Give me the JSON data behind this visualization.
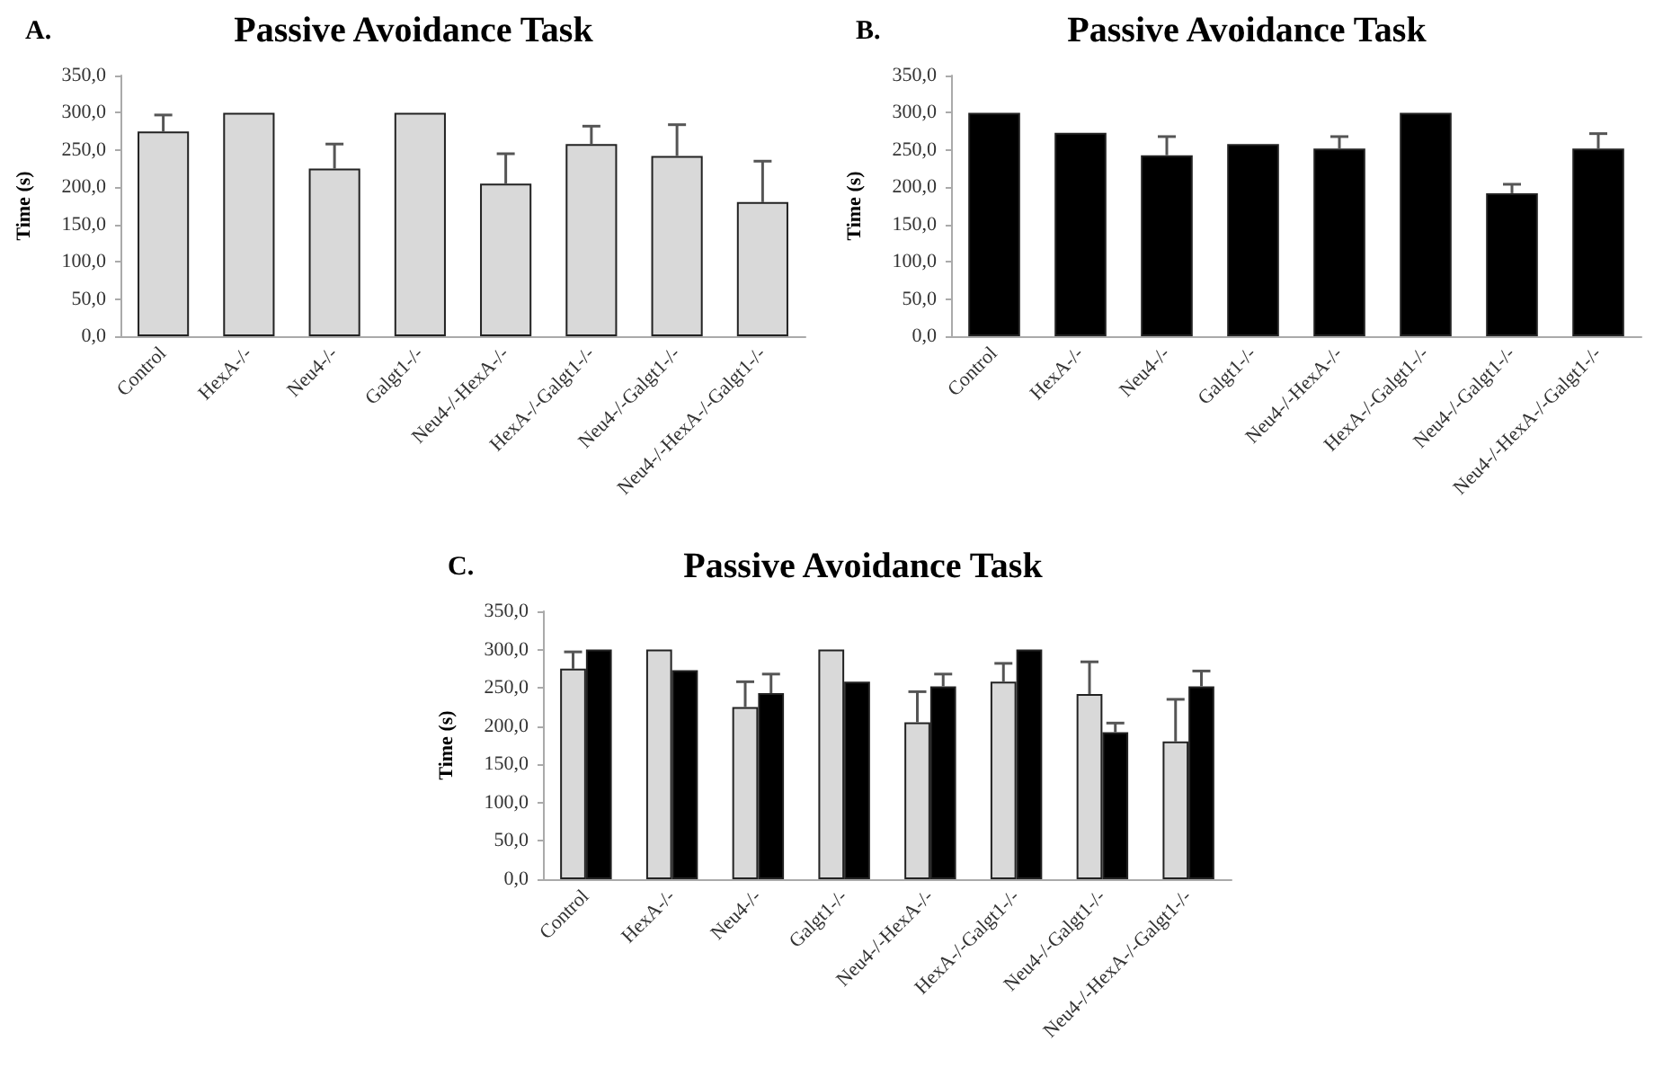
{
  "chart_data": [
    {
      "type": "bar",
      "title": "Passive Avoidance Task",
      "annotations": [
        "A."
      ],
      "ylabel": "Time (s)",
      "categories": [
        "Control",
        "HexA-/-",
        "Neu4-/-",
        "Galgt1-/-",
        "Neu4-/-HexA-/-",
        "HexA-/-Galgt1-/-",
        "Neu4-/-Galgt1-/-",
        "Neu4-/-HexA-/-Galgt1-/-"
      ],
      "values": [
        275,
        300,
        225,
        300,
        205,
        258,
        242,
        180
      ],
      "color": "#d9d9d9",
      "errors": [
        [
          275,
          297
        ],
        null,
        [
          225,
          258
        ],
        null,
        [
          205,
          245
        ],
        [
          258,
          282
        ],
        [
          242,
          284
        ],
        [
          180,
          235
        ]
      ],
      "ylim": [
        0,
        350
      ],
      "yticks": [
        {
          "value": 0,
          "label": "0,0"
        },
        {
          "value": 50,
          "label": "50,0"
        },
        {
          "value": 100,
          "label": "100,0"
        },
        {
          "value": 150,
          "label": "150,0"
        },
        {
          "value": 200,
          "label": "200,0"
        },
        {
          "value": 250,
          "label": "250,0"
        },
        {
          "value": 300,
          "label": "300,0"
        },
        {
          "value": 350,
          "label": "350,0"
        }
      ]
    },
    {
      "type": "bar",
      "title": "Passive Avoidance Task",
      "annotations": [
        "B."
      ],
      "ylabel": "Time (s)",
      "categories": [
        "Control",
        "HexA-/-",
        "Neu4-/-",
        "Galgt1-/-",
        "Neu4-/-HexA-/-",
        "HexA-/-Galgt1-/-",
        "Neu4-/-Galgt1-/-",
        "Neu4-/-HexA-/-Galgt1-/-"
      ],
      "values": [
        300,
        273,
        243,
        258,
        252,
        300,
        192,
        252
      ],
      "color": "#000000",
      "errors": [
        null,
        null,
        [
          243,
          268
        ],
        null,
        [
          252,
          268
        ],
        null,
        [
          192,
          204
        ],
        [
          252,
          272
        ]
      ],
      "ylim": [
        0,
        350
      ],
      "yticks": [
        {
          "value": 0,
          "label": "0,0"
        },
        {
          "value": 50,
          "label": "50,0"
        },
        {
          "value": 100,
          "label": "100,0"
        },
        {
          "value": 150,
          "label": "150,0"
        },
        {
          "value": 200,
          "label": "200,0"
        },
        {
          "value": 250,
          "label": "250,0"
        },
        {
          "value": 300,
          "label": "300,0"
        },
        {
          "value": 350,
          "label": "350,0"
        }
      ]
    },
    {
      "type": "bar",
      "title": "Passive Avoidance Task",
      "annotations": [
        "C."
      ],
      "ylabel": "Time (s)",
      "categories": [
        "Control",
        "HexA-/-",
        "Neu4-/-",
        "Galgt1-/-",
        "Neu4-/-HexA-/-",
        "HexA-/-Galgt1-/-",
        "Neu4-/-Galgt1-/-",
        "Neu4-/-HexA-/-Galgt1-/-"
      ],
      "series": [
        {
          "color": "#d9d9d9",
          "values": [
            275,
            300,
            225,
            300,
            205,
            258,
            242,
            180
          ],
          "errors": [
            [
              275,
              297
            ],
            null,
            [
              225,
              258
            ],
            null,
            [
              205,
              245
            ],
            [
              258,
              282
            ],
            [
              242,
              284
            ],
            [
              180,
              235
            ]
          ]
        },
        {
          "color": "#000000",
          "values": [
            300,
            273,
            243,
            258,
            252,
            300,
            192,
            252
          ],
          "errors": [
            null,
            null,
            [
              243,
              268
            ],
            null,
            [
              252,
              268
            ],
            null,
            [
              192,
              204
            ],
            [
              252,
              272
            ]
          ]
        }
      ],
      "ylim": [
        0,
        350
      ],
      "yticks": [
        {
          "value": 0,
          "label": "0,0"
        },
        {
          "value": 50,
          "label": "50,0"
        },
        {
          "value": 100,
          "label": "100,0"
        },
        {
          "value": 150,
          "label": "150,0"
        },
        {
          "value": 200,
          "label": "200,0"
        },
        {
          "value": 250,
          "label": "250,0"
        },
        {
          "value": 300,
          "label": "300,0"
        },
        {
          "value": 350,
          "label": "350,0"
        }
      ]
    }
  ]
}
